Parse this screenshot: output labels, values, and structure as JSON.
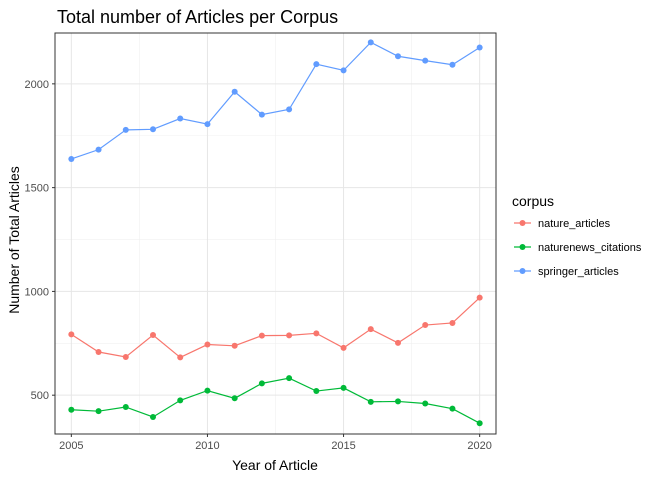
{
  "chart_data": {
    "type": "line",
    "title": "Total number of Articles per Corpus",
    "xlabel": "Year of Article",
    "ylabel": "Number of Total Articles",
    "xlim": [
      2004.4,
      2020.6
    ],
    "ylim": [
      313,
      2245
    ],
    "x_ticks": [
      2005,
      2010,
      2015,
      2020
    ],
    "y_ticks": [
      500,
      1000,
      1500,
      2000
    ],
    "grid": true,
    "legend": {
      "title": "corpus",
      "position": "right"
    },
    "x": [
      2005,
      2006,
      2007,
      2008,
      2009,
      2010,
      2011,
      2012,
      2013,
      2014,
      2015,
      2016,
      2017,
      2018,
      2019,
      2020
    ],
    "series": [
      {
        "name": "nature_articles",
        "color": "#F8766D",
        "values": [
          793,
          708,
          684,
          790,
          682,
          744,
          738,
          787,
          788,
          798,
          728,
          818,
          752,
          838,
          848,
          970
        ]
      },
      {
        "name": "naturenews_citations",
        "color": "#00BA38",
        "values": [
          430,
          423,
          443,
          395,
          475,
          522,
          485,
          557,
          582,
          520,
          535,
          468,
          470,
          460,
          435,
          365
        ]
      },
      {
        "name": "springer_articles",
        "color": "#619CFF",
        "values": [
          1638,
          1683,
          1778,
          1781,
          1833,
          1806,
          1962,
          1852,
          1877,
          2095,
          2065,
          2200,
          2133,
          2112,
          2092,
          2175
        ]
      }
    ]
  }
}
